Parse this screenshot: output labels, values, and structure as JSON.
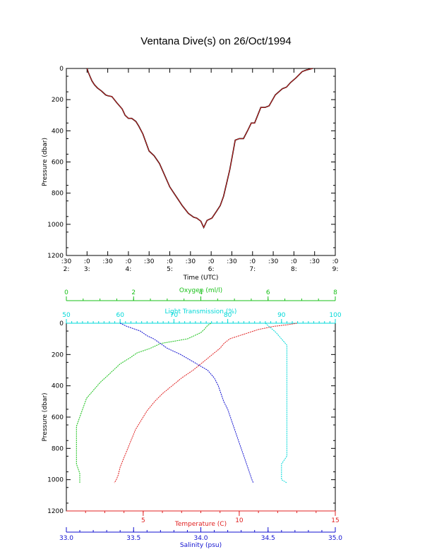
{
  "title": "Ventana Dive(s) on 26/Oct/1994",
  "chart_data": [
    {
      "type": "line",
      "xlabel": "Time (UTC)",
      "ylabel": "Pressure (dbar)",
      "y_ticks": [
        "0",
        "200",
        "400",
        "600",
        "800",
        "1000",
        "1200"
      ],
      "ylim": [
        1200,
        0
      ],
      "x_tick_labels_top": [
        ":30",
        ":0",
        ":30",
        ":0",
        ":30",
        ":0",
        ":30",
        ":0",
        ":30",
        ":0",
        ":30",
        ":0",
        ":30",
        ":0"
      ],
      "x_tick_labels_bottom": [
        "2:",
        "3:",
        "",
        "4:",
        "",
        "5:",
        "",
        "6:",
        "",
        "7:",
        "",
        "8:",
        "",
        "9:"
      ],
      "xlim_hours": [
        2.5,
        9.0
      ],
      "series": [
        {
          "color": "#e02020",
          "x_hours": [
            3.0,
            3.03,
            3.07,
            3.12,
            3.18,
            3.25,
            3.35,
            3.45,
            3.5,
            3.6,
            3.72,
            3.85,
            3.92,
            4.0,
            4.08,
            4.18,
            4.25,
            4.35,
            4.5,
            4.62,
            4.75,
            4.9,
            5.0,
            5.1,
            5.2,
            5.3,
            5.45,
            5.58,
            5.65,
            5.75,
            5.82,
            5.9,
            6.02,
            6.12,
            6.22,
            6.3,
            6.38,
            6.45,
            6.52,
            6.58,
            6.68,
            6.78,
            6.88,
            6.97,
            7.05,
            7.2,
            7.3,
            7.4,
            7.55,
            7.72,
            7.82,
            7.92,
            8.05,
            8.2,
            8.3,
            8.45
          ],
          "pressure": [
            0,
            25,
            50,
            80,
            105,
            125,
            145,
            170,
            175,
            180,
            220,
            260,
            300,
            320,
            320,
            340,
            370,
            420,
            530,
            560,
            610,
            700,
            760,
            800,
            840,
            880,
            930,
            955,
            960,
            980,
            1020,
            975,
            960,
            920,
            880,
            820,
            730,
            650,
            550,
            460,
            450,
            450,
            400,
            350,
            350,
            250,
            250,
            240,
            170,
            130,
            120,
            90,
            60,
            20,
            10,
            0
          ]
        }
      ]
    },
    {
      "type": "line",
      "ylabel": "Pressure (dbar)",
      "y_ticks": [
        "0",
        "200",
        "400",
        "600",
        "800",
        "1000",
        "1200"
      ],
      "ylim": [
        1200,
        0
      ],
      "axes": [
        {
          "label": "Oxygen (ml/l)",
          "color": "#18c018",
          "range": [
            0,
            8
          ],
          "ticks": [
            "0",
            "2",
            "4",
            "6",
            "8"
          ]
        },
        {
          "label": "Light Transmission (%)",
          "color": "#00d8d8",
          "range": [
            50,
            100
          ],
          "ticks": [
            "50",
            "60",
            "70",
            "80",
            "90",
            "100"
          ]
        },
        {
          "label": "Temperature (C)",
          "color": "#e02020",
          "range": [
            1,
            15
          ],
          "ticks": [
            "5",
            "10",
            "15"
          ]
        },
        {
          "label": "Salinity (psu)",
          "color": "#1010d0",
          "range": [
            33.0,
            35.0
          ],
          "ticks": [
            "33.0",
            "33.5",
            "34.0",
            "34.5",
            "35.0"
          ]
        }
      ],
      "series": [
        {
          "axis": "Oxygen (ml/l)",
          "color": "#18c018",
          "pressure": [
            0,
            15,
            40,
            60,
            100,
            130,
            160,
            190,
            220,
            260,
            300,
            340,
            380,
            430,
            480,
            540,
            600,
            660,
            720,
            780,
            840,
            900,
            960,
            1000,
            1020
          ],
          "values": [
            4.3,
            4.2,
            4.1,
            4.0,
            3.6,
            2.8,
            2.5,
            2.1,
            1.9,
            1.6,
            1.4,
            1.2,
            1.0,
            0.8,
            0.6,
            0.5,
            0.4,
            0.3,
            0.3,
            0.3,
            0.3,
            0.3,
            0.4,
            0.4,
            0.4
          ]
        },
        {
          "axis": "Temperature (C)",
          "color": "#e02020",
          "pressure": [
            0,
            10,
            20,
            40,
            60,
            80,
            100,
            130,
            160,
            190,
            220,
            260,
            300,
            350,
            400,
            450,
            500,
            560,
            620,
            680,
            740,
            800,
            860,
            920,
            970,
            1000,
            1020
          ],
          "values": [
            13.0,
            12.5,
            11.8,
            11.0,
            10.5,
            10.0,
            9.5,
            9.2,
            9.0,
            8.7,
            8.4,
            8.0,
            7.6,
            7.0,
            6.5,
            6.0,
            5.6,
            5.2,
            4.9,
            4.6,
            4.4,
            4.2,
            4.0,
            3.8,
            3.7,
            3.6,
            3.5
          ]
        },
        {
          "axis": "Salinity (psu)",
          "color": "#1010d0",
          "pressure": [
            0,
            20,
            50,
            80,
            100,
            130,
            160,
            200,
            250,
            300,
            350,
            400,
            450,
            500,
            550,
            600,
            650,
            700,
            750,
            800,
            850,
            900,
            950,
            1000,
            1020
          ],
          "values": [
            33.4,
            33.45,
            33.55,
            33.6,
            33.65,
            33.7,
            33.75,
            33.85,
            33.95,
            34.05,
            34.1,
            34.13,
            34.15,
            34.17,
            34.2,
            34.22,
            34.24,
            34.26,
            34.28,
            34.3,
            34.32,
            34.34,
            34.36,
            34.38,
            34.39
          ]
        },
        {
          "axis": "Light Transmission (%)",
          "color": "#00d8d8",
          "pressure": [
            0,
            30,
            60,
            100,
            140,
            180,
            220,
            260,
            300,
            400,
            500,
            650,
            750,
            850,
            900,
            950,
            1000,
            1020
          ],
          "values": [
            87,
            88,
            89,
            90,
            91,
            91,
            91,
            91,
            91,
            91,
            91,
            91,
            91,
            91,
            90,
            90,
            90,
            91
          ]
        }
      ]
    }
  ]
}
